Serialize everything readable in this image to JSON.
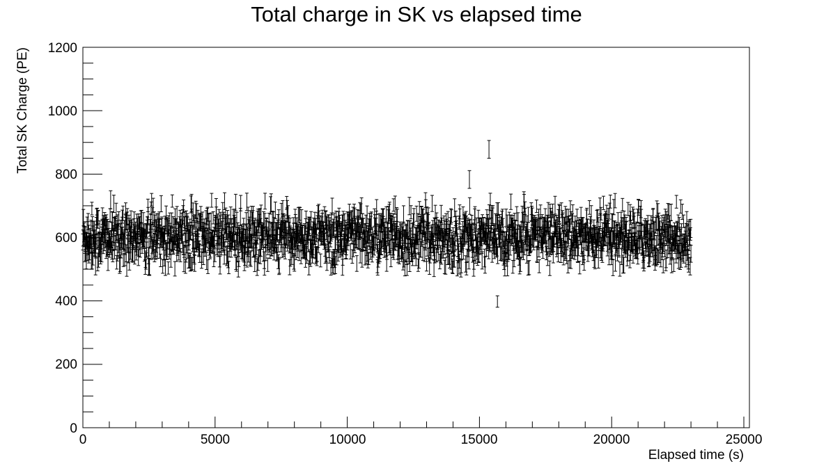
{
  "chart_data": {
    "type": "scatter",
    "title": "Total charge in SK vs elapsed time",
    "xlabel": "Elapsed time (s)",
    "ylabel": "Total SK Charge (PE)",
    "xlim": [
      0,
      25000
    ],
    "ylim": [
      0,
      1200
    ],
    "x_ticks": [
      "0",
      "5000",
      "10000",
      "15000",
      "20000",
      "25000"
    ],
    "y_ticks": [
      "0",
      "200",
      "400",
      "600",
      "800",
      "1000",
      "1200"
    ],
    "grid": false,
    "legend": "none",
    "error_bars": true,
    "series": [
      {
        "x_range": [
          0,
          23000
        ],
        "x_step": 10,
        "y_mean": 600,
        "y_spread": 45,
        "y_err": 24,
        "y_scatter_range": [
          500,
          720
        ],
        "outliers": [
          {
            "x": 15360,
            "y": 878,
            "err": 28
          },
          {
            "x": 15680,
            "y": 398,
            "err": 18
          },
          {
            "x": 14620,
            "y": 783,
            "err": 28
          }
        ]
      }
    ]
  }
}
